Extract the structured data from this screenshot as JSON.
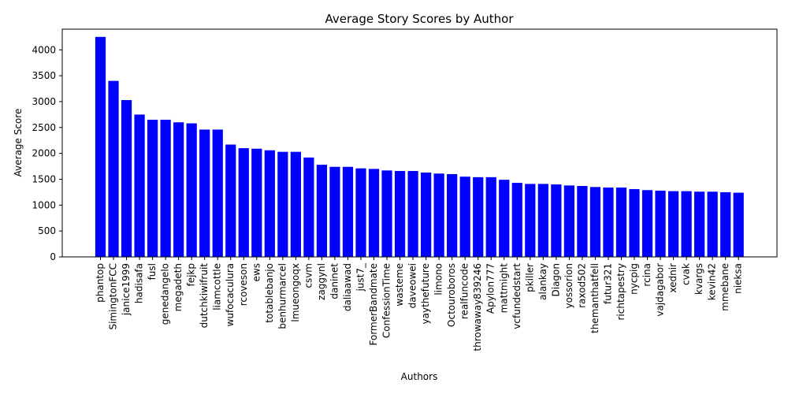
{
  "chart_data": {
    "type": "bar",
    "title": "Average Story Scores by Author",
    "xlabel": "Authors",
    "ylabel": "Average Score",
    "ylim": [
      0,
      4400
    ],
    "yticks": [
      0,
      500,
      1000,
      1500,
      2000,
      2500,
      3000,
      3500,
      4000
    ],
    "bar_color": "#0000ff",
    "grid": false,
    "categories": [
      "phantop",
      "SimingtonFCC",
      "janice1999",
      "hadisafa",
      "fusl",
      "genedangelo",
      "megadeth",
      "fejkp",
      "dutchkiwifruit",
      "liamcottle",
      "wufocaculura",
      "rcoveson",
      "ews",
      "totablebanjo",
      "benhurmarcel",
      "lmueongoqx",
      "csvm",
      "zaggynl",
      "daninet",
      "daliaawad",
      "just7_",
      "FormerBandmate",
      "ConfessionTime",
      "wasteme",
      "daveowei",
      "yaythefuture",
      "limono",
      "Octouroboros",
      "realfuncode",
      "throwaway839246",
      "Apylon777",
      "mattmight",
      "vcfundedstart",
      "pkiller",
      "alankay",
      "Diagon",
      "yossorion",
      "raxod502",
      "themanthatfell",
      "futur321",
      "richtapestry",
      "nycpig",
      "rcina",
      "vajdagabor",
      "xednir",
      "cvak",
      "kvargs",
      "kevin42",
      "mmebane",
      "nieksa"
    ],
    "values": [
      4250,
      3400,
      3030,
      2750,
      2650,
      2650,
      2600,
      2580,
      2460,
      2460,
      2170,
      2100,
      2090,
      2060,
      2030,
      2030,
      1920,
      1780,
      1740,
      1740,
      1710,
      1700,
      1670,
      1660,
      1660,
      1630,
      1610,
      1600,
      1550,
      1540,
      1540,
      1490,
      1430,
      1410,
      1410,
      1400,
      1380,
      1370,
      1350,
      1340,
      1340,
      1310,
      1290,
      1280,
      1270,
      1270,
      1260,
      1260,
      1250,
      1240
    ]
  }
}
